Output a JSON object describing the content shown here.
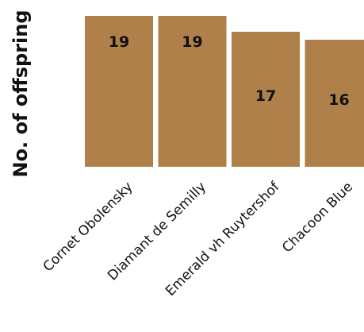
{
  "chart_data": {
    "type": "bar",
    "title": "",
    "xlabel": "",
    "ylabel": "No. of offspring",
    "categories": [
      "Cornet Obolensky",
      "Diamant de Semilly",
      "Emerald vh Ruytershof",
      "Chacoon Blue"
    ],
    "values": [
      19,
      19,
      17,
      16
    ],
    "data_labels": [
      "19",
      "19",
      "17",
      "16"
    ],
    "ylim": [
      0,
      19
    ],
    "grid": false,
    "legend": "none",
    "colors": {
      "bar": "#B0804B",
      "text": "#111111",
      "background": "#FFFFFF"
    }
  }
}
